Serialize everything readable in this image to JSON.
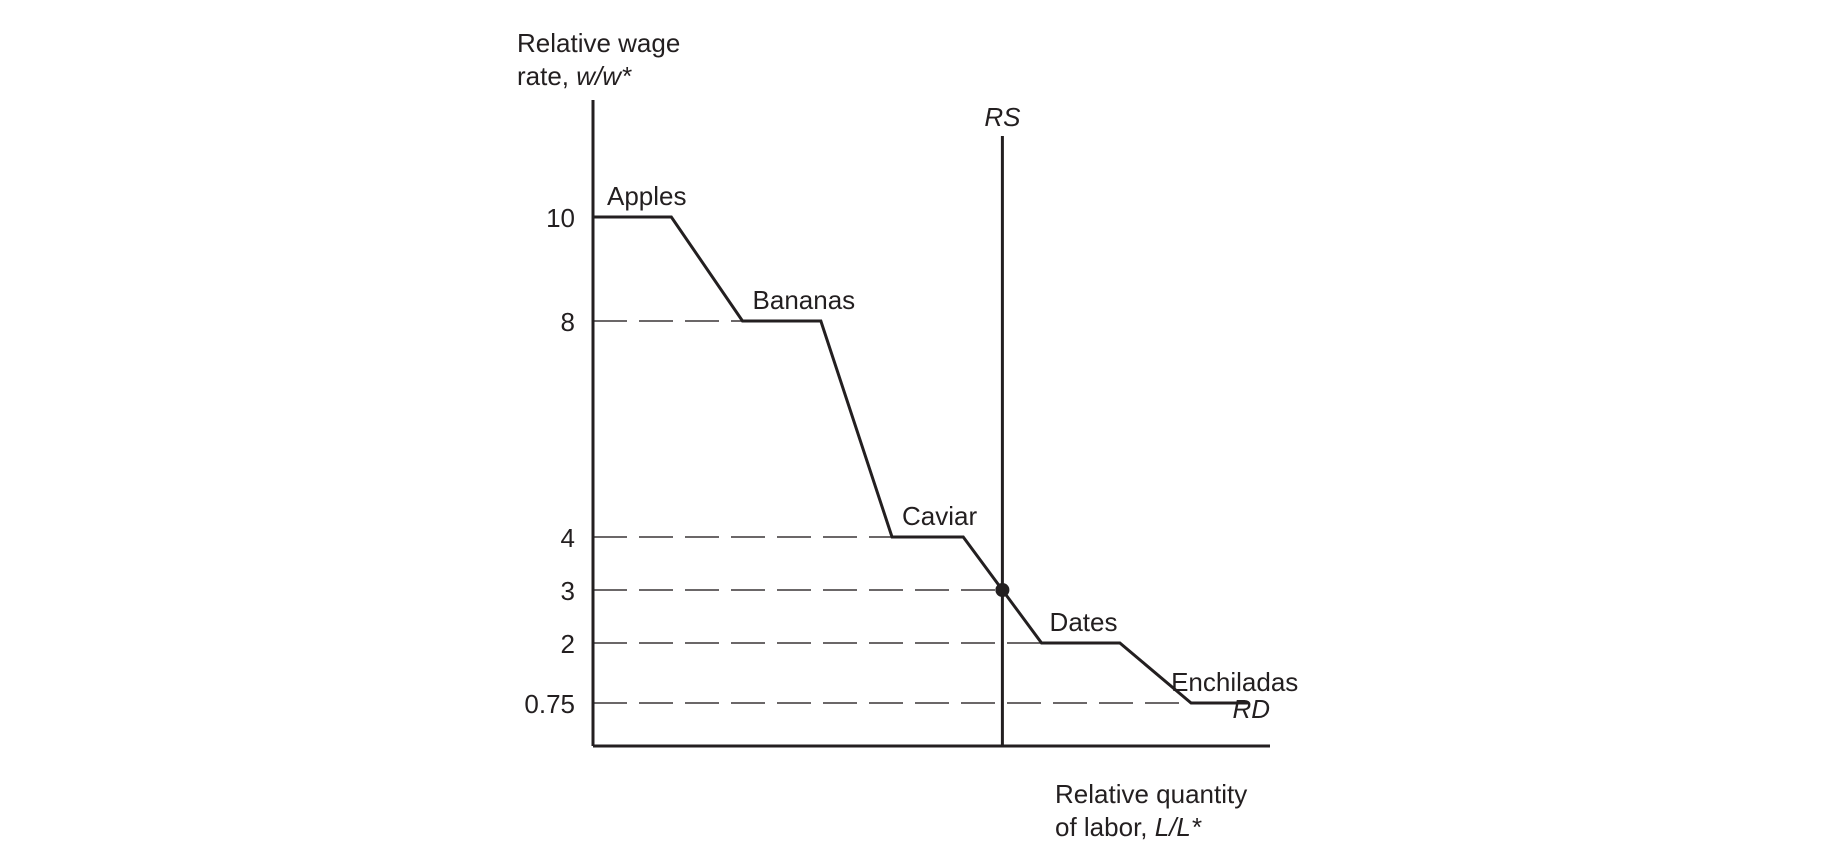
{
  "chart_data": {
    "type": "line",
    "y_axis": {
      "label_line1": "Relative wage",
      "label_line2_prefix": "rate, ",
      "label_line2_var": "w/w*"
    },
    "x_axis": {
      "label_line1": "Relative quantity",
      "label_line2_prefix": "of labor, ",
      "label_line2_var": "L/L*"
    },
    "y_ticks": [
      {
        "value": 10,
        "label": "10"
      },
      {
        "value": 8,
        "label": "8"
      },
      {
        "value": 4,
        "label": "4"
      },
      {
        "value": 3,
        "label": "3"
      },
      {
        "value": 2,
        "label": "2"
      },
      {
        "value": 0.75,
        "label": "0.75"
      }
    ],
    "step_levels": [
      {
        "good": "Apples",
        "y": 10,
        "x_start": 0,
        "x_end": 11
      },
      {
        "good": "Bananas",
        "y": 8,
        "x_start": 21,
        "x_end": 32
      },
      {
        "good": "Caviar",
        "y": 4,
        "x_start": 42,
        "x_end": 52
      },
      {
        "good": "Dates",
        "y": 2,
        "x_start": 63,
        "x_end": 74
      },
      {
        "good": "Enchiladas",
        "y": 0.75,
        "x_start": 84,
        "x_end": 92
      }
    ],
    "series": [
      {
        "name": "RD",
        "type": "step-demand"
      },
      {
        "name": "RS",
        "type": "vertical-supply",
        "x": 57.5
      }
    ],
    "equilibrium": {
      "x": 57.5,
      "y": 3
    },
    "xlim": [
      0,
      100
    ],
    "grid": false,
    "legend": "none"
  }
}
